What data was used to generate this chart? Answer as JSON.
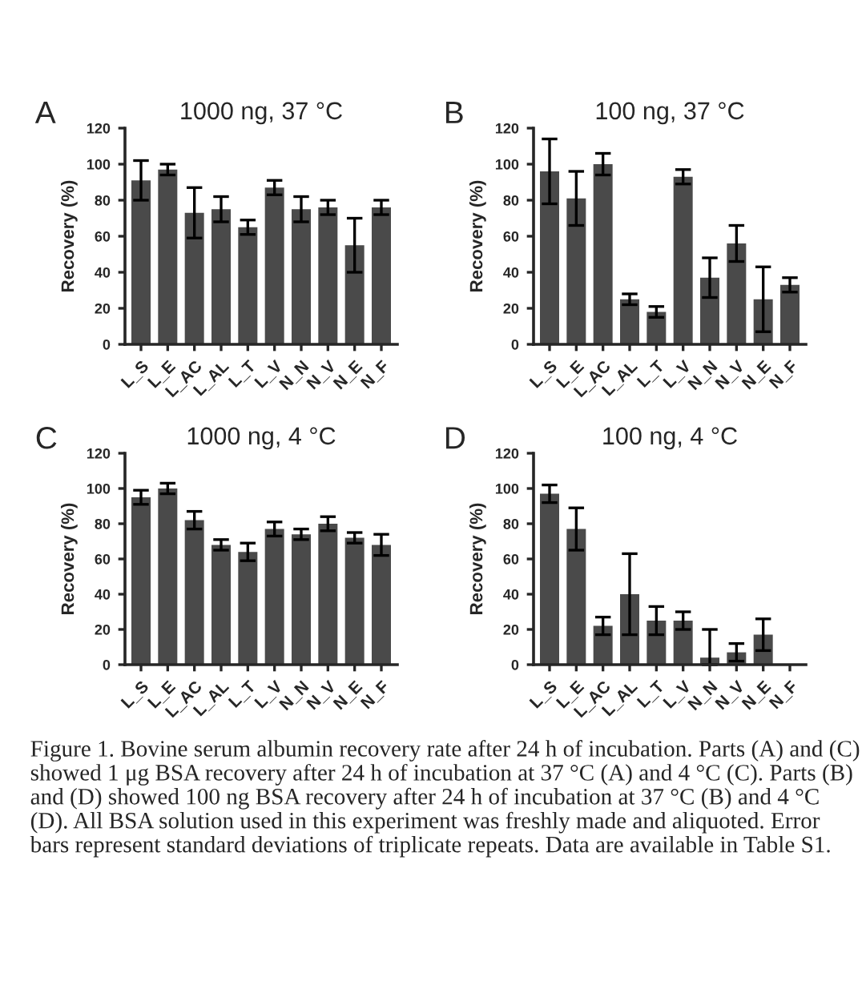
{
  "chart_data": [
    {
      "type": "bar",
      "title": "1000 ng, 37 °C",
      "ylabel": "Recovery (%)",
      "annotations": [
        "A"
      ],
      "categories": [
        "L_S",
        "L_E",
        "L_AC",
        "L_AL",
        "L_T",
        "L_V",
        "N_N",
        "N_V",
        "N_E",
        "N_F"
      ],
      "color": "#4a4a4a",
      "values": [
        91,
        97,
        73,
        75,
        65,
        87,
        75,
        76,
        55,
        76
      ],
      "errors": [
        11,
        3,
        14,
        7,
        4,
        4,
        7,
        4,
        15,
        4
      ],
      "ylim": [
        0,
        120
      ],
      "yticks": [
        0,
        20,
        40,
        60,
        80,
        100,
        120
      ],
      "grid": false,
      "legend": false
    },
    {
      "type": "bar",
      "title": "100 ng, 37 °C",
      "ylabel": "Recovery (%)",
      "annotations": [
        "B"
      ],
      "categories": [
        "L_S",
        "L_E",
        "L_AC",
        "L_AL",
        "L_T",
        "L_V",
        "N_N",
        "N_V",
        "N_E",
        "N_F"
      ],
      "color": "#4a4a4a",
      "values": [
        96,
        81,
        100,
        25,
        18,
        93,
        37,
        56,
        25,
        33
      ],
      "errors": [
        18,
        15,
        6,
        3,
        3,
        4,
        11,
        10,
        18,
        4
      ],
      "ylim": [
        0,
        120
      ],
      "yticks": [
        0,
        20,
        40,
        60,
        80,
        100,
        120
      ],
      "grid": false,
      "legend": false
    },
    {
      "type": "bar",
      "title": "1000 ng, 4 °C",
      "ylabel": "Recovery (%)",
      "annotations": [
        "C"
      ],
      "categories": [
        "L_S",
        "L_E",
        "L_AC",
        "L_AL",
        "L_T",
        "L_V",
        "N_N",
        "N_V",
        "N_E",
        "N_F"
      ],
      "color": "#4a4a4a",
      "values": [
        95,
        100,
        82,
        68,
        64,
        77,
        74,
        80,
        72,
        68
      ],
      "errors": [
        4,
        3,
        5,
        3,
        5,
        4,
        3,
        4,
        3,
        6
      ],
      "ylim": [
        0,
        120
      ],
      "yticks": [
        0,
        20,
        40,
        60,
        80,
        100,
        120
      ],
      "grid": false,
      "legend": false
    },
    {
      "type": "bar",
      "title": "100 ng, 4 °C",
      "ylabel": "Recovery (%)",
      "annotations": [
        "D",
        "Figure 1. Bovine serum albumin recovery rate after 24 h of incubation. Parts (A) and (C) showed 1 μg BSA recovery after 24 h of incubation at 37 °C (A) and 4 °C (C). Parts (B) and (D) showed 100 ng BSA recovery after 24 h of incubation at 37 °C (B) and 4 °C (D). All BSA solution used in this experiment was freshly made and aliquoted. Error bars represent standard deviations of triplicate repeats. Data are available in Table S1."
      ],
      "categories": [
        "L_S",
        "L_E",
        "L_AC",
        "L_AL",
        "L_T",
        "L_V",
        "N_N",
        "N_V",
        "N_E",
        "N_F"
      ],
      "color": "#4a4a4a",
      "values": [
        97,
        77,
        22,
        40,
        25,
        25,
        4,
        7,
        17,
        0
      ],
      "errors": [
        5,
        12,
        5,
        23,
        8,
        5,
        [
          0,
          20
        ],
        5,
        9,
        null
      ],
      "ylim": [
        0,
        120
      ],
      "yticks": [
        0,
        20,
        40,
        60,
        80,
        100,
        120
      ],
      "grid": false,
      "legend": false
    }
  ]
}
